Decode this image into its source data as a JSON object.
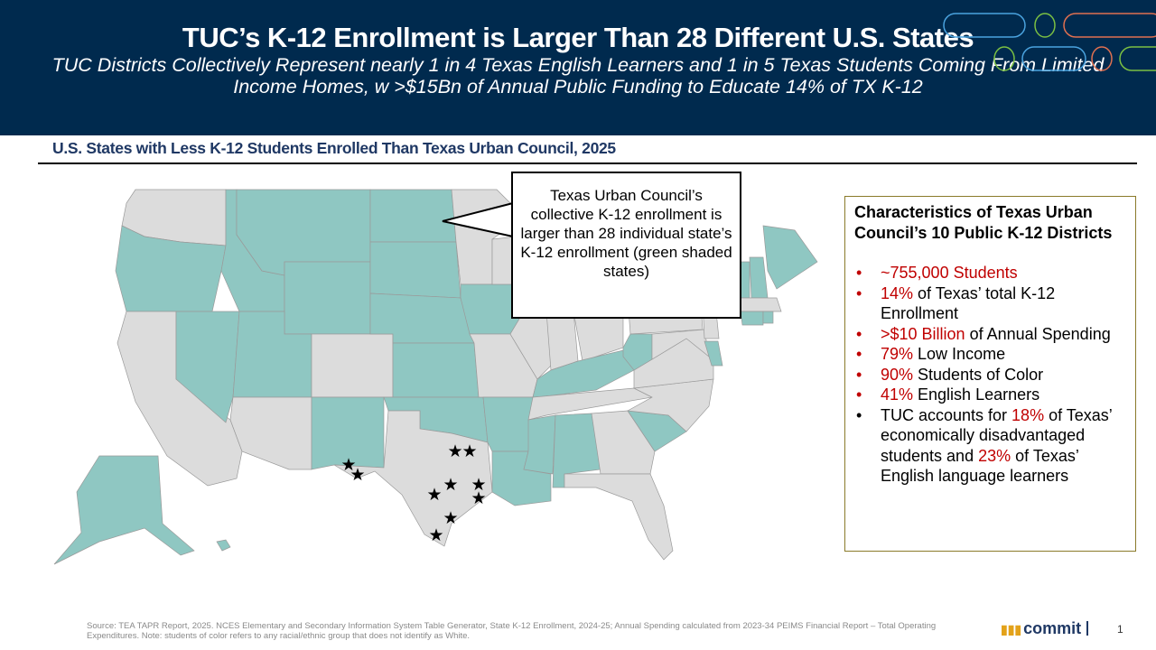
{
  "header": {
    "title": "TUC’s K-12 Enrollment is Larger Than 28 Different U.S. States",
    "subtitle": "TUC Districts Collectively Represent nearly 1 in 4 Texas English Learners and 1 in 5 Texas Students Coming From Limited Income Homes, w >$15Bn of Annual Public Funding to Educate 14% of TX K-12"
  },
  "section_title": "U.S. States with Less K-12 Students Enrolled Than Texas Urban Council, 2025",
  "map": {
    "green_states": [
      "AK",
      "HI",
      "OR",
      "ID",
      "MT",
      "WY",
      "NV",
      "UT",
      "ND",
      "SD",
      "NE",
      "KS",
      "NM",
      "OK",
      "AR",
      "LA",
      "MS",
      "AL",
      "SC",
      "IA",
      "KY",
      "WV",
      "ME",
      "NH",
      "VT",
      "CT",
      "RI",
      "DE"
    ],
    "colors": {
      "green": "#8fc7c2",
      "gray": "#dcdcdc",
      "border": "#9a9a9a"
    },
    "tuc_district_markers": 10
  },
  "callout": "Texas Urban Council’s collective K-12 enrollment is larger than 28 individual state’s K-12 enrollment (green shaded states)",
  "panel": {
    "title": "Characteristics of Texas Urban Council’s 10 Public K-12 Districts",
    "items": [
      {
        "hl": "~755,000 Students",
        "rest": ""
      },
      {
        "hl": "14%",
        "rest": " of Texas’ total K-12 Enrollment"
      },
      {
        "hl": ">$10 Billion",
        "rest": " of Annual Spending"
      },
      {
        "hl": "79%",
        "rest": " Low Income"
      },
      {
        "hl": "90%",
        "rest": " Students of Color"
      },
      {
        "hl": "41%",
        "rest": " English Learners"
      }
    ],
    "last": {
      "a": "TUC accounts for ",
      "b": "18%",
      "c": " of Texas’ economically disadvantaged students and ",
      "d": "23%",
      "e": " of Texas’ English language learners"
    }
  },
  "footer": "Source: TEA TAPR Report, 2025. NCES Elementary and Secondary Information System Table Generator, State K-12 Enrollment, 2024-25; Annual Spending calculated from 2023-34 PEIMS Financial Report – Total Operating Expenditures. Note: students of color refers to any racial/ethnic group that does not identify as White.",
  "logo": "commit",
  "page_number": "1"
}
